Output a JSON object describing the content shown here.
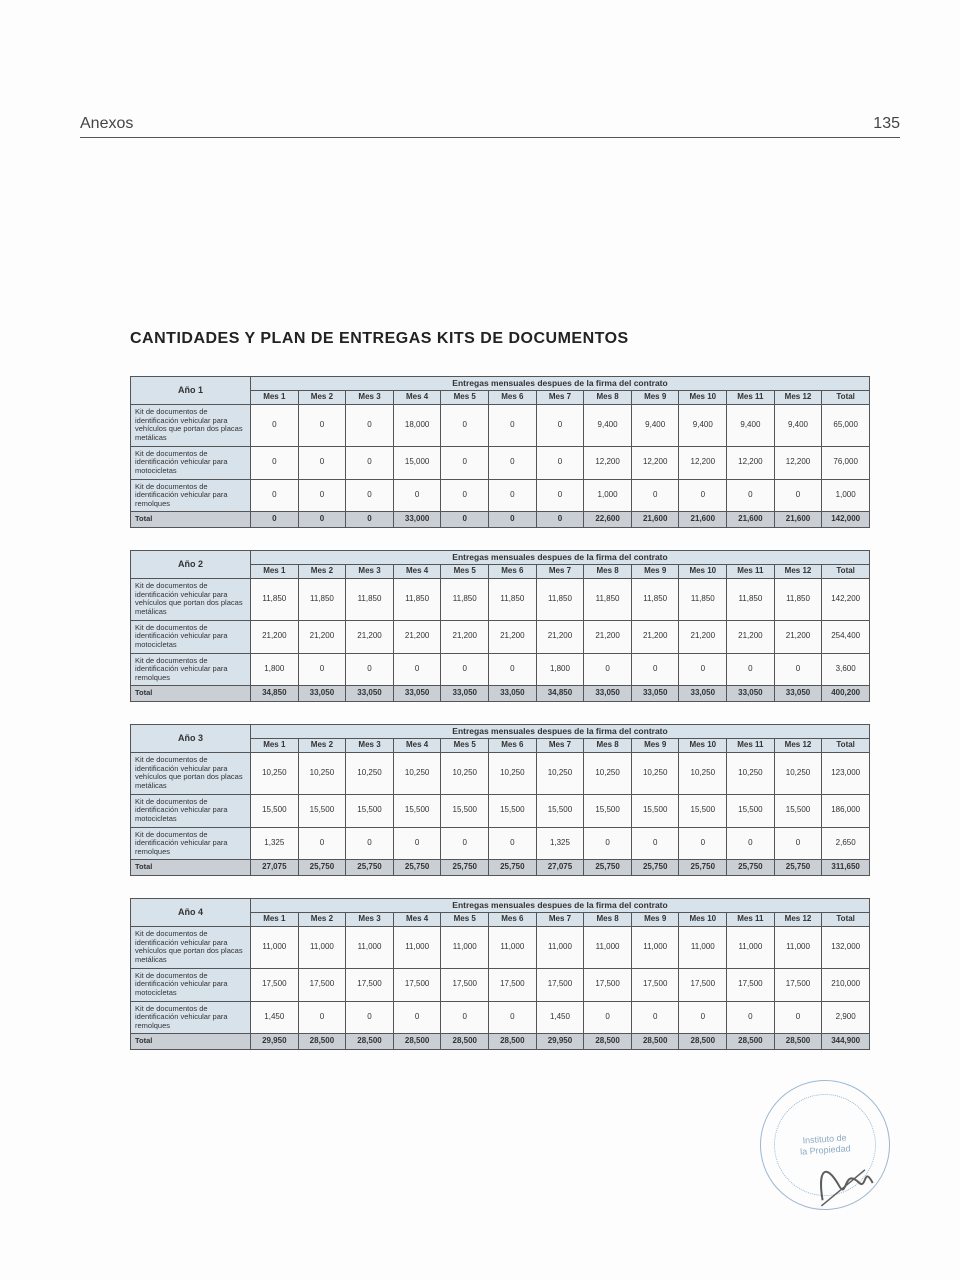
{
  "header": {
    "section": "Anexos",
    "pageNumber": "135"
  },
  "title": "CANTIDADES Y PLAN DE ENTREGAS KITS DE DOCUMENTOS",
  "bannerLabel": "Entregas mensuales despues de la firma del contrato",
  "monthHeaders": [
    "Mes 1",
    "Mes 2",
    "Mes 3",
    "Mes 4",
    "Mes 5",
    "Mes 6",
    "Mes 7",
    "Mes 8",
    "Mes 9",
    "Mes 10",
    "Mes 11",
    "Mes 12",
    "Total"
  ],
  "rowLabels": {
    "r1": "Kit de documentos de identificación vehicular para vehículos que portan dos placas metálicas",
    "r2": "Kit de documentos de identificación vehicular para motocicletas",
    "r3": "Kit de documentos de identificación vehicular para remolques",
    "total": "Total"
  },
  "tables": [
    {
      "year": "Año 1",
      "rows": [
        [
          "0",
          "0",
          "0",
          "18,000",
          "0",
          "0",
          "0",
          "9,400",
          "9,400",
          "9,400",
          "9,400",
          "9,400",
          "65,000"
        ],
        [
          "0",
          "0",
          "0",
          "15,000",
          "0",
          "0",
          "0",
          "12,200",
          "12,200",
          "12,200",
          "12,200",
          "12,200",
          "76,000"
        ],
        [
          "0",
          "0",
          "0",
          "0",
          "0",
          "0",
          "0",
          "1,000",
          "0",
          "0",
          "0",
          "0",
          "1,000"
        ]
      ],
      "total": [
        "0",
        "0",
        "0",
        "33,000",
        "0",
        "0",
        "0",
        "22,600",
        "21,600",
        "21,600",
        "21,600",
        "21,600",
        "142,000"
      ]
    },
    {
      "year": "Año 2",
      "rows": [
        [
          "11,850",
          "11,850",
          "11,850",
          "11,850",
          "11,850",
          "11,850",
          "11,850",
          "11,850",
          "11,850",
          "11,850",
          "11,850",
          "11,850",
          "142,200"
        ],
        [
          "21,200",
          "21,200",
          "21,200",
          "21,200",
          "21,200",
          "21,200",
          "21,200",
          "21,200",
          "21,200",
          "21,200",
          "21,200",
          "21,200",
          "254,400"
        ],
        [
          "1,800",
          "0",
          "0",
          "0",
          "0",
          "0",
          "1,800",
          "0",
          "0",
          "0",
          "0",
          "0",
          "3,600"
        ]
      ],
      "total": [
        "34,850",
        "33,050",
        "33,050",
        "33,050",
        "33,050",
        "33,050",
        "34,850",
        "33,050",
        "33,050",
        "33,050",
        "33,050",
        "33,050",
        "400,200"
      ]
    },
    {
      "year": "Año 3",
      "rows": [
        [
          "10,250",
          "10,250",
          "10,250",
          "10,250",
          "10,250",
          "10,250",
          "10,250",
          "10,250",
          "10,250",
          "10,250",
          "10,250",
          "10,250",
          "123,000"
        ],
        [
          "15,500",
          "15,500",
          "15,500",
          "15,500",
          "15,500",
          "15,500",
          "15,500",
          "15,500",
          "15,500",
          "15,500",
          "15,500",
          "15,500",
          "186,000"
        ],
        [
          "1,325",
          "0",
          "0",
          "0",
          "0",
          "0",
          "1,325",
          "0",
          "0",
          "0",
          "0",
          "0",
          "2,650"
        ]
      ],
      "total": [
        "27,075",
        "25,750",
        "25,750",
        "25,750",
        "25,750",
        "25,750",
        "27,075",
        "25,750",
        "25,750",
        "25,750",
        "25,750",
        "25,750",
        "311,650"
      ]
    },
    {
      "year": "Año 4",
      "rows": [
        [
          "11,000",
          "11,000",
          "11,000",
          "11,000",
          "11,000",
          "11,000",
          "11,000",
          "11,000",
          "11,000",
          "11,000",
          "11,000",
          "11,000",
          "132,000"
        ],
        [
          "17,500",
          "17,500",
          "17,500",
          "17,500",
          "17,500",
          "17,500",
          "17,500",
          "17,500",
          "17,500",
          "17,500",
          "17,500",
          "17,500",
          "210,000"
        ],
        [
          "1,450",
          "0",
          "0",
          "0",
          "0",
          "0",
          "1,450",
          "0",
          "0",
          "0",
          "0",
          "0",
          "2,900"
        ]
      ],
      "total": [
        "29,950",
        "28,500",
        "28,500",
        "28,500",
        "28,500",
        "28,500",
        "29,950",
        "28,500",
        "28,500",
        "28,500",
        "28,500",
        "28,500",
        "344,900"
      ]
    }
  ],
  "stamp": {
    "line1": "Instituto de",
    "line2": "la Propiedad"
  }
}
